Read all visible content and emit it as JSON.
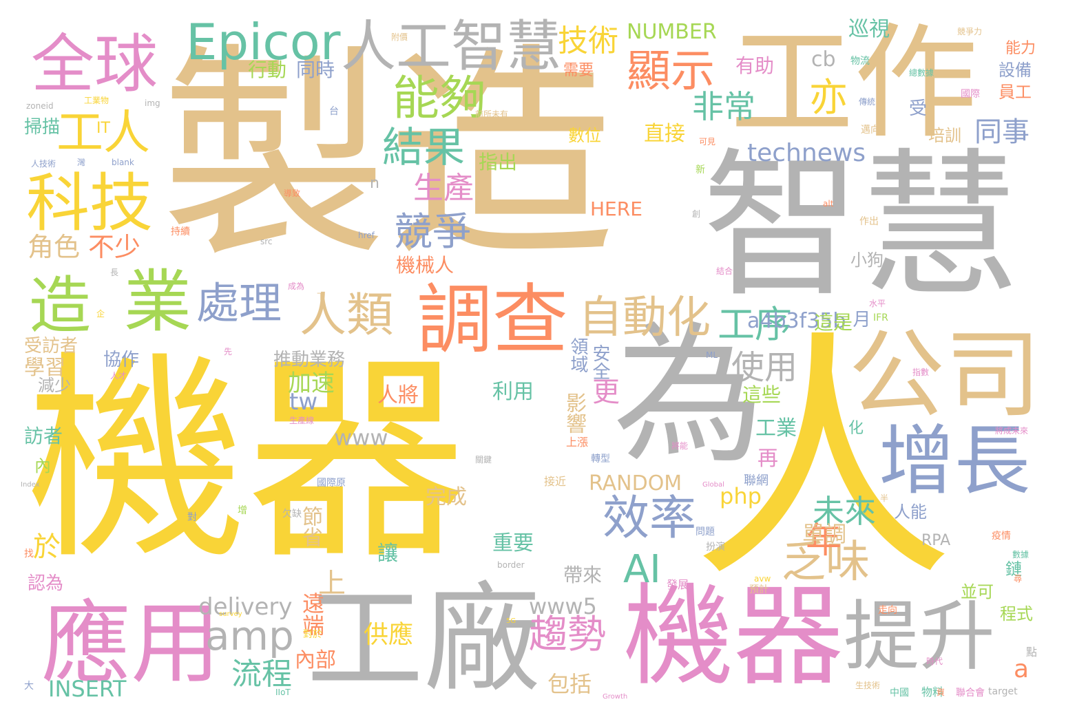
{
  "palette": {
    "gold": "#F9D437",
    "tan": "#E3C28B",
    "gray": "#B3B3B3",
    "pink": "#E48DC8",
    "blue": "#8EA0CB",
    "green": "#A6D754",
    "teal": "#66C2A5",
    "orange": "#FC8D62"
  },
  "words": [
    "機器",
    "人",
    "製造",
    "為",
    "工作",
    "智慧",
    "公司",
    "增長",
    "工廠",
    "機器",
    "應用",
    "提升",
    "調查",
    "人工智慧",
    "Epicor",
    "全球",
    "科技",
    "造",
    "業",
    "能夠",
    "結果",
    "顯示",
    "技術",
    "工人",
    "效率",
    "趨勢",
    "乏味",
    "自動化",
    "人類",
    "處理",
    "競爭",
    "生產",
    "AI",
    "amp",
    "工序",
    "使用",
    "年",
    "未來",
    "流程",
    "NUMBER",
    "technews",
    "a4b3f35b",
    "非常",
    "亦",
    "同事",
    "巡視",
    "cb",
    "delivery",
    "www5",
    "INSERT",
    "RANDOM",
    "HERE",
    "php",
    "www",
    "tw",
    "a",
    "角色",
    "不少",
    "於",
    "上",
    "更",
    "領域",
    "安全",
    "加速",
    "行動",
    "同時",
    "有助",
    "需要",
    "直接",
    "指出",
    "機械人",
    "小狗",
    "這是",
    "月",
    "IFR",
    "工業",
    "這些",
    "再",
    "影響",
    "人能",
    "完成",
    "單調",
    "節省",
    "帶來",
    "包括",
    "供應",
    "內部",
    "遠端",
    "重要",
    "讓",
    "利用",
    "人將",
    "學習",
    "減少",
    "訪者",
    "內",
    "協作",
    "推動業務",
    "受訪者",
    "認為",
    "掃描",
    "IT",
    "設備",
    "員工",
    "能力",
    "培訓",
    "受",
    "數位",
    "RPA",
    "程式",
    "並可",
    "鏈",
    "化",
    "點",
    "target",
    "border",
    "src",
    "href",
    "n",
    "blank",
    "img",
    "zoneid",
    "alt",
    "Global",
    "ML",
    "IIoT",
    "5G",
    "survey",
    "Growth",
    "avw",
    "Index",
    "物料",
    "中國",
    "聯網",
    "疫情",
    "問題",
    "扮演",
    "上漲",
    "轉型",
    "接近",
    "發展",
    "預計",
    "走向",
    "關鍵",
    "聯合會",
    "對於",
    "物流",
    "傳統",
    "邁向",
    "國際",
    "可見",
    "作出",
    "競爭力",
    "附價",
    "國際原",
    "增",
    "對",
    "欠缺",
    "找",
    "大",
    "人才",
    "先",
    "企",
    "長",
    "持續",
    "導致",
    "創",
    "新",
    "台",
    "灣",
    "工業物",
    "人技術",
    "成為",
    "下",
    "半",
    "前所未有",
    "生產線",
    "資",
    "結合",
    "數據",
    "將能",
    "指數",
    "將成未來",
    "水平",
    "總數據",
    "尋",
    "時代",
    "生技術",
    "萬",
    "質"
  ]
}
